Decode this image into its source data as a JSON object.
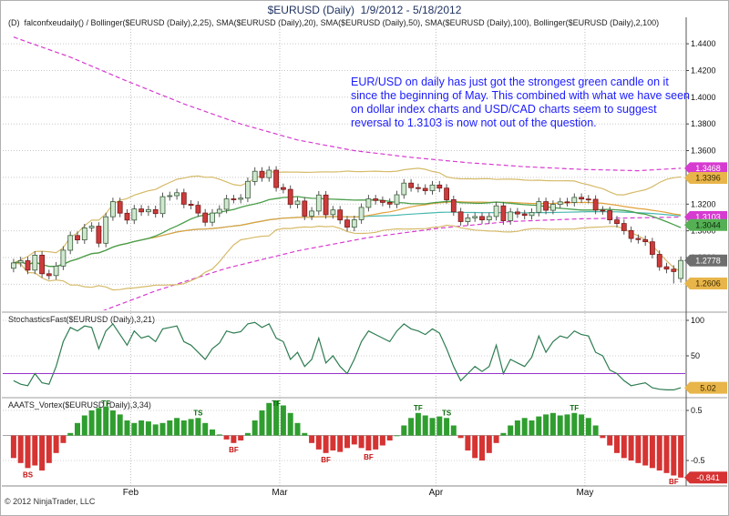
{
  "title": "$EURUSD (Daily)  1/9/2012 - 5/18/2012",
  "main_panel": {
    "indicator_label": "(D)  falconfxeudaily() / Bollinger($EURUSD (Daily),2,25), SMA($EURUSD (Daily),20), SMA($EURUSD (Daily),50), SMA($EURUSD (Daily),100), Bollinger($EURUSD (Daily),2,100)",
    "annotation": "EUR/USD on daily has just got the strongest green candle on it since the beginning of May. This combined with what we have seen on dollar index charts and USD/CAD charts seem to suggest reversal to 1.3103 is now not out of the question.",
    "annotation_color": "#1d1dff",
    "price_badges": [
      {
        "label": "1.3468",
        "value": 1.3468,
        "bg": "#d63bd0",
        "fg": "#ffffff"
      },
      {
        "label": "1.3396",
        "value": 1.3396,
        "bg": "#e8b54a",
        "fg": "#3a2a00"
      },
      {
        "label": "1.3103",
        "value": 1.3103,
        "bg": "#d63bd0",
        "fg": "#ffffff"
      },
      {
        "label": "1.3044",
        "value": 1.3044,
        "bg": "#55b055",
        "fg": "#0a2a0a"
      },
      {
        "label": "1.2778",
        "value": 1.2778,
        "bg": "#6e6e6e",
        "fg": "#ffffff"
      },
      {
        "label": "1.2606",
        "value": 1.2606,
        "bg": "#e8b54a",
        "fg": "#3a2a00"
      }
    ]
  },
  "stoch_panel": {
    "label": "StochasticsFast($EURUSD (Daily),3,21)",
    "threshold": 25,
    "threshold_color": "#9933cc",
    "badge": {
      "label": "5.02",
      "value": 5.02,
      "bg": "#e8b54a",
      "fg": "#3a2a00"
    }
  },
  "vortex_panel": {
    "label": "AAATS_Vortex($EURUSD (Daily),3,34)",
    "badge": {
      "label": "-0.841",
      "value": -0.841,
      "bg": "#d63333",
      "fg": "#ffffff"
    },
    "signal_labels": [
      {
        "index": 2,
        "text": "BS",
        "side": "below"
      },
      {
        "index": 13,
        "text": "TF",
        "side": "above"
      },
      {
        "index": 26,
        "text": "TS",
        "side": "above"
      },
      {
        "index": 31,
        "text": "BF",
        "side": "below"
      },
      {
        "index": 37,
        "text": "TF",
        "side": "above"
      },
      {
        "index": 44,
        "text": "BF",
        "side": "below"
      },
      {
        "index": 50,
        "text": "BF",
        "side": "below"
      },
      {
        "index": 57,
        "text": "TF",
        "side": "above"
      },
      {
        "index": 61,
        "text": "TS",
        "side": "above"
      },
      {
        "index": 79,
        "text": "TF",
        "side": "above"
      },
      {
        "index": 93,
        "text": "BF",
        "side": "below"
      }
    ]
  },
  "footer": {
    "copyright": "© 2012 NinjaTrader, LLC"
  },
  "chart_data": {
    "type": "candlestick",
    "symbol": "$EURUSD",
    "interval": "Daily",
    "date_range": "1/9/2012 - 5/18/2012",
    "main_axis": {
      "min": 1.2405,
      "max": 1.453,
      "ticks": [
        1.44,
        1.42,
        1.4,
        1.38,
        1.36,
        1.34,
        1.32,
        1.3,
        1.28,
        1.26
      ]
    },
    "month_ticks": [
      {
        "label": "Feb",
        "index": 17
      },
      {
        "label": "Mar",
        "index": 38
      },
      {
        "label": "Apr",
        "index": 60
      },
      {
        "label": "May",
        "index": 81
      }
    ],
    "candles": [
      [
        1.272,
        1.279,
        1.269,
        1.276
      ],
      [
        1.276,
        1.2806,
        1.273,
        1.2776
      ],
      [
        1.2776,
        1.2806,
        1.2676,
        1.2706
      ],
      [
        1.2706,
        1.2848,
        1.2676,
        1.2818
      ],
      [
        1.2818,
        1.2848,
        1.2649,
        1.2679
      ],
      [
        1.2679,
        1.2709,
        1.2635,
        1.2665
      ],
      [
        1.2665,
        1.2766,
        1.2635,
        1.2736
      ],
      [
        1.2736,
        1.2885,
        1.2706,
        1.2855
      ],
      [
        1.2855,
        1.2995,
        1.2825,
        1.2965
      ],
      [
        1.2965,
        1.2995,
        1.2902,
        1.2932
      ],
      [
        1.2932,
        1.3052,
        1.2902,
        1.3022
      ],
      [
        1.3022,
        1.3064,
        1.2992,
        1.3034
      ],
      [
        1.3034,
        1.3064,
        1.2877,
        1.2907
      ],
      [
        1.2907,
        1.3135,
        1.2877,
        1.3105
      ],
      [
        1.3105,
        1.3248,
        1.3075,
        1.3218
      ],
      [
        1.3218,
        1.3248,
        1.3102,
        1.3132
      ],
      [
        1.3132,
        1.3162,
        1.3051,
        1.3081
      ],
      [
        1.3081,
        1.3194,
        1.3051,
        1.3164
      ],
      [
        1.3164,
        1.3194,
        1.3112,
        1.3142
      ],
      [
        1.3142,
        1.3188,
        1.3112,
        1.3158
      ],
      [
        1.3158,
        1.3188,
        1.3099,
        1.3129
      ],
      [
        1.3129,
        1.3286,
        1.3099,
        1.3256
      ],
      [
        1.3256,
        1.3293,
        1.3226,
        1.3263
      ],
      [
        1.3263,
        1.3315,
        1.3233,
        1.3285
      ],
      [
        1.3285,
        1.3315,
        1.3169,
        1.3199
      ],
      [
        1.3199,
        1.3229,
        1.3161,
        1.3191
      ],
      [
        1.3191,
        1.3221,
        1.3103,
        1.3133
      ],
      [
        1.3133,
        1.3163,
        1.3034,
        1.3064
      ],
      [
        1.3064,
        1.3163,
        1.3034,
        1.3133
      ],
      [
        1.3133,
        1.3191,
        1.3103,
        1.3161
      ],
      [
        1.3161,
        1.3269,
        1.3131,
        1.3239
      ],
      [
        1.3239,
        1.3269,
        1.3206,
        1.3236
      ],
      [
        1.3236,
        1.3275,
        1.3206,
        1.3245
      ],
      [
        1.3245,
        1.34,
        1.3215,
        1.337
      ],
      [
        1.337,
        1.3476,
        1.334,
        1.3446
      ],
      [
        1.3446,
        1.3476,
        1.3368,
        1.3398
      ],
      [
        1.3398,
        1.3484,
        1.3368,
        1.3454
      ],
      [
        1.3454,
        1.3484,
        1.3294,
        1.3324
      ],
      [
        1.3324,
        1.3354,
        1.328,
        1.331
      ],
      [
        1.331,
        1.334,
        1.3168,
        1.3198
      ],
      [
        1.3198,
        1.3253,
        1.3168,
        1.3223
      ],
      [
        1.3223,
        1.3253,
        1.308,
        1.311
      ],
      [
        1.311,
        1.3178,
        1.308,
        1.3148
      ],
      [
        1.3148,
        1.3298,
        1.3118,
        1.3268
      ],
      [
        1.3268,
        1.3298,
        1.3091,
        1.3121
      ],
      [
        1.3121,
        1.3186,
        1.3091,
        1.3156
      ],
      [
        1.3156,
        1.3186,
        1.3051,
        1.3081
      ],
      [
        1.3081,
        1.3111,
        1.2997,
        1.3027
      ],
      [
        1.3027,
        1.3113,
        1.2997,
        1.3083
      ],
      [
        1.3083,
        1.3205,
        1.3053,
        1.3175
      ],
      [
        1.3175,
        1.3269,
        1.3145,
        1.3239
      ],
      [
        1.3239,
        1.3269,
        1.3197,
        1.3227
      ],
      [
        1.3227,
        1.3257,
        1.3183,
        1.3213
      ],
      [
        1.3213,
        1.3243,
        1.317,
        1.32
      ],
      [
        1.32,
        1.33,
        1.317,
        1.327
      ],
      [
        1.327,
        1.3387,
        1.324,
        1.3357
      ],
      [
        1.3357,
        1.3387,
        1.3293,
        1.3323
      ],
      [
        1.3323,
        1.3353,
        1.3288,
        1.3318
      ],
      [
        1.3318,
        1.3348,
        1.3271,
        1.3301
      ],
      [
        1.3301,
        1.3373,
        1.3271,
        1.3343
      ],
      [
        1.3343,
        1.3373,
        1.329,
        1.332
      ],
      [
        1.332,
        1.335,
        1.3203,
        1.3233
      ],
      [
        1.3233,
        1.3263,
        1.3112,
        1.3142
      ],
      [
        1.3142,
        1.3172,
        1.3039,
        1.3069
      ],
      [
        1.3069,
        1.3127,
        1.3039,
        1.3097
      ],
      [
        1.3097,
        1.3137,
        1.3067,
        1.3107
      ],
      [
        1.3107,
        1.3137,
        1.3052,
        1.3082
      ],
      [
        1.3082,
        1.3137,
        1.3052,
        1.3107
      ],
      [
        1.3107,
        1.3217,
        1.3077,
        1.3187
      ],
      [
        1.3187,
        1.3217,
        1.3046,
        1.3076
      ],
      [
        1.3076,
        1.3171,
        1.3046,
        1.3141
      ],
      [
        1.3141,
        1.3171,
        1.3096,
        1.3126
      ],
      [
        1.3126,
        1.3156,
        1.3085,
        1.3115
      ],
      [
        1.3115,
        1.3168,
        1.3085,
        1.3138
      ],
      [
        1.3138,
        1.3248,
        1.3108,
        1.3218
      ],
      [
        1.3218,
        1.3248,
        1.3124,
        1.3154
      ],
      [
        1.3154,
        1.3228,
        1.3124,
        1.3198
      ],
      [
        1.3198,
        1.3247,
        1.3168,
        1.3217
      ],
      [
        1.3217,
        1.3247,
        1.3182,
        1.3212
      ],
      [
        1.3212,
        1.328,
        1.3182,
        1.325
      ],
      [
        1.325,
        1.328,
        1.3208,
        1.3238
      ],
      [
        1.3238,
        1.3268,
        1.3206,
        1.3236
      ],
      [
        1.3236,
        1.3266,
        1.3125,
        1.3155
      ],
      [
        1.3155,
        1.3185,
        1.3121,
        1.3151
      ],
      [
        1.3151,
        1.3181,
        1.3052,
        1.3082
      ],
      [
        1.3082,
        1.3112,
        1.3025,
        1.3055
      ],
      [
        1.3055,
        1.3085,
        1.2972,
        1.3002
      ],
      [
        1.3002,
        1.3032,
        1.2913,
        1.2943
      ],
      [
        1.2943,
        1.2973,
        1.2904,
        1.2934
      ],
      [
        1.2934,
        1.2964,
        1.2888,
        1.2918
      ],
      [
        1.2918,
        1.2948,
        1.2794,
        1.2824
      ],
      [
        1.2824,
        1.2854,
        1.2701,
        1.2731
      ],
      [
        1.2731,
        1.2761,
        1.2683,
        1.2713
      ],
      [
        1.2713,
        1.2743,
        1.2606,
        1.2695
      ],
      [
        1.2643,
        1.2808,
        1.2613,
        1.2778
      ]
    ],
    "overlays": {
      "sma20": {
        "period": 20,
        "color": "#4a9e4a"
      },
      "sma50": {
        "period": 50,
        "color": "#e2a23c"
      },
      "sma100": {
        "period": 100,
        "color": "#49b8b0"
      },
      "bollinger25": {
        "period": 25,
        "width": 2,
        "color": "#d6bb6a"
      },
      "bollinger100_upper": {
        "color": "#d63bd0",
        "points": [
          [
            0,
            1.445
          ],
          [
            8,
            1.43
          ],
          [
            16,
            1.412
          ],
          [
            24,
            1.395
          ],
          [
            32,
            1.38
          ],
          [
            40,
            1.368
          ],
          [
            48,
            1.36
          ],
          [
            56,
            1.355
          ],
          [
            64,
            1.351
          ],
          [
            72,
            1.348
          ],
          [
            80,
            1.346
          ],
          [
            88,
            1.345
          ],
          [
            94,
            1.3468
          ]
        ]
      },
      "bollinger100_lower": {
        "color": "#d63bd0",
        "points": [
          [
            0,
            1.215
          ],
          [
            10,
            1.235
          ],
          [
            20,
            1.255
          ],
          [
            30,
            1.272
          ],
          [
            40,
            1.285
          ],
          [
            50,
            1.295
          ],
          [
            60,
            1.302
          ],
          [
            70,
            1.307
          ],
          [
            80,
            1.309
          ],
          [
            94,
            1.3103
          ]
        ]
      }
    },
    "stochastics": {
      "color": "#2e7d52",
      "axis": {
        "min": 0,
        "max": 100,
        "ticks": [
          100,
          50
        ]
      },
      "values": [
        15,
        10,
        8,
        25,
        12,
        10,
        35,
        70,
        90,
        85,
        92,
        90,
        60,
        85,
        95,
        80,
        65,
        85,
        75,
        78,
        70,
        88,
        90,
        92,
        70,
        65,
        55,
        45,
        60,
        68,
        85,
        82,
        84,
        95,
        97,
        90,
        95,
        75,
        70,
        45,
        55,
        35,
        45,
        75,
        40,
        50,
        35,
        25,
        45,
        70,
        85,
        80,
        75,
        70,
        85,
        95,
        88,
        85,
        80,
        88,
        82,
        60,
        35,
        15,
        25,
        35,
        28,
        35,
        65,
        25,
        45,
        40,
        35,
        48,
        78,
        55,
        70,
        78,
        75,
        85,
        80,
        78,
        55,
        50,
        30,
        25,
        15,
        8,
        10,
        12,
        5,
        3,
        2,
        2,
        5.02
      ]
    },
    "vortex": {
      "up_color": "#2f9e2f",
      "down_color": "#d63333",
      "axis": {
        "min": -0.99,
        "max": 0.72,
        "ticks": [
          0.5,
          -0.5
        ]
      },
      "values": [
        -0.45,
        -0.55,
        -0.65,
        -0.6,
        -0.7,
        -0.55,
        -0.35,
        -0.15,
        0.05,
        0.25,
        0.4,
        0.5,
        0.55,
        0.58,
        0.5,
        0.42,
        0.3,
        0.25,
        0.3,
        0.28,
        0.22,
        0.25,
        0.3,
        0.35,
        0.3,
        0.33,
        0.35,
        0.25,
        0.12,
        0.02,
        -0.08,
        -0.15,
        -0.1,
        0.05,
        0.3,
        0.5,
        0.65,
        0.7,
        0.6,
        0.45,
        0.25,
        0.05,
        -0.15,
        -0.28,
        -0.35,
        -0.3,
        -0.33,
        -0.25,
        -0.18,
        -0.25,
        -0.3,
        -0.28,
        -0.2,
        -0.1,
        0.0,
        0.2,
        0.35,
        0.45,
        0.4,
        0.35,
        0.38,
        0.35,
        0.2,
        -0.05,
        -0.3,
        -0.45,
        -0.5,
        -0.35,
        -0.15,
        0.05,
        0.2,
        0.3,
        0.35,
        0.3,
        0.38,
        0.42,
        0.45,
        0.4,
        0.42,
        0.45,
        0.42,
        0.35,
        0.2,
        -0.05,
        -0.2,
        -0.35,
        -0.45,
        -0.5,
        -0.55,
        -0.6,
        -0.65,
        -0.7,
        -0.75,
        -0.8,
        -0.841
      ]
    }
  }
}
